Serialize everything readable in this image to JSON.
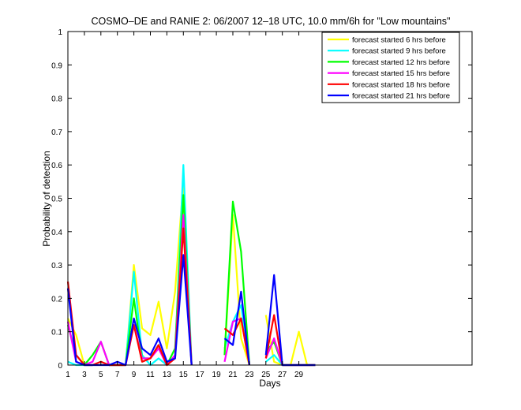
{
  "chart_data": {
    "type": "line",
    "title": "COSMO–DE and RANIE 2: 06/2007 12–18 UTC, 10.0 mm/6h for \"Low mountains\"",
    "xlabel": "Days",
    "ylabel": "Probability of detection",
    "xlim": [
      1,
      50
    ],
    "ylim": [
      0,
      1
    ],
    "xticks": [
      1,
      3,
      5,
      7,
      9,
      11,
      13,
      15,
      17,
      19,
      21,
      23,
      25,
      27,
      29
    ],
    "yticks": [
      0,
      0.1,
      0.2,
      0.3,
      0.4,
      0.5,
      0.6,
      0.7,
      0.8,
      0.9,
      1
    ],
    "legend_position": "top-right",
    "grid": false,
    "series": [
      {
        "name": "forecast started 6 hrs before",
        "color": "#ffff00",
        "segments": [
          [
            [
              1,
              0.14
            ],
            [
              2,
              0.09
            ],
            [
              3,
              0
            ],
            [
              4,
              0
            ],
            [
              5,
              0.01
            ],
            [
              6,
              0
            ],
            [
              7,
              0
            ],
            [
              8,
              0
            ],
            [
              9,
              0.3
            ],
            [
              10,
              0.11
            ],
            [
              11,
              0.09
            ],
            [
              12,
              0.19
            ],
            [
              13,
              0.05
            ],
            [
              14,
              0.22
            ],
            [
              15,
              0.55
            ],
            [
              16,
              0
            ]
          ],
          [
            [
              20,
              0.03
            ],
            [
              21,
              0.45
            ],
            [
              22,
              0.08
            ],
            [
              23,
              0
            ]
          ],
          [
            [
              25,
              0.15
            ],
            [
              26,
              0.01
            ],
            [
              27,
              0
            ],
            [
              28,
              0
            ],
            [
              29,
              0.1
            ],
            [
              30,
              0
            ],
            [
              31,
              0
            ]
          ]
        ]
      },
      {
        "name": "forecast started 9 hrs before",
        "color": "#00ffff",
        "segments": [
          [
            [
              1,
              0.01
            ],
            [
              2,
              0
            ],
            [
              3,
              0
            ],
            [
              4,
              0
            ],
            [
              5,
              0.01
            ],
            [
              6,
              0
            ],
            [
              7,
              0
            ],
            [
              8,
              0
            ],
            [
              9,
              0.28
            ],
            [
              10,
              0.03
            ],
            [
              11,
              0
            ],
            [
              12,
              0.02
            ],
            [
              13,
              0
            ],
            [
              14,
              0.03
            ],
            [
              15,
              0.6
            ],
            [
              16,
              0
            ]
          ],
          [
            [
              20,
              0.05
            ],
            [
              21,
              0.13
            ],
            [
              22,
              0.18
            ],
            [
              23,
              0
            ]
          ],
          [
            [
              25,
              0.01
            ],
            [
              26,
              0.03
            ],
            [
              27,
              0
            ],
            [
              28,
              0
            ],
            [
              29,
              0
            ],
            [
              30,
              0
            ],
            [
              31,
              0
            ]
          ]
        ]
      },
      {
        "name": "forecast started 12 hrs before",
        "color": "#00ff00",
        "segments": [
          [
            [
              1,
              0.12
            ],
            [
              2,
              0.03
            ],
            [
              3,
              0
            ],
            [
              4,
              0.03
            ],
            [
              5,
              0.07
            ],
            [
              6,
              0
            ],
            [
              7,
              0
            ],
            [
              8,
              0
            ],
            [
              9,
              0.2
            ],
            [
              10,
              0.02
            ],
            [
              11,
              0.02
            ],
            [
              12,
              0.06
            ],
            [
              13,
              0
            ],
            [
              14,
              0.05
            ],
            [
              15,
              0.51
            ],
            [
              16,
              0
            ]
          ],
          [
            [
              20,
              0.03
            ],
            [
              21,
              0.49
            ],
            [
              22,
              0.34
            ],
            [
              23,
              0
            ]
          ],
          [
            [
              25,
              0.04
            ],
            [
              26,
              0.07
            ],
            [
              27,
              0
            ],
            [
              28,
              0
            ],
            [
              29,
              0
            ],
            [
              30,
              0
            ],
            [
              31,
              0
            ]
          ]
        ]
      },
      {
        "name": "forecast started 15 hrs before",
        "color": "#ff00ff",
        "segments": [
          [
            [
              1,
              0.13
            ],
            [
              2,
              0.01
            ],
            [
              3,
              0
            ],
            [
              4,
              0.01
            ],
            [
              5,
              0.07
            ],
            [
              6,
              0
            ],
            [
              7,
              0
            ],
            [
              8,
              0
            ],
            [
              9,
              0.12
            ],
            [
              10,
              0.02
            ],
            [
              11,
              0.02
            ],
            [
              12,
              0.05
            ],
            [
              13,
              0
            ],
            [
              14,
              0.03
            ],
            [
              15,
              0.45
            ],
            [
              16,
              0
            ]
          ],
          [
            [
              20,
              0.01
            ],
            [
              21,
              0.13
            ],
            [
              22,
              0.14
            ],
            [
              23,
              0
            ]
          ],
          [
            [
              25,
              0.02
            ],
            [
              26,
              0.08
            ],
            [
              27,
              0
            ],
            [
              28,
              0
            ],
            [
              29,
              0
            ],
            [
              30,
              0
            ],
            [
              31,
              0
            ]
          ]
        ]
      },
      {
        "name": "forecast started 18 hrs before",
        "color": "#ff0000",
        "segments": [
          [
            [
              1,
              0.25
            ],
            [
              2,
              0.03
            ],
            [
              3,
              0
            ],
            [
              4,
              0
            ],
            [
              5,
              0.01
            ],
            [
              6,
              0
            ],
            [
              7,
              0
            ],
            [
              8,
              0
            ],
            [
              9,
              0.12
            ],
            [
              10,
              0.01
            ],
            [
              11,
              0.02
            ],
            [
              12,
              0.06
            ],
            [
              13,
              0
            ],
            [
              14,
              0.02
            ],
            [
              15,
              0.41
            ],
            [
              16,
              0
            ]
          ],
          [
            [
              20,
              0.11
            ],
            [
              21,
              0.09
            ],
            [
              22,
              0.14
            ],
            [
              23,
              0
            ]
          ],
          [
            [
              25,
              0.02
            ],
            [
              26,
              0.15
            ],
            [
              27,
              0
            ],
            [
              28,
              0
            ],
            [
              29,
              0
            ],
            [
              30,
              0
            ],
            [
              31,
              0
            ]
          ]
        ]
      },
      {
        "name": "forecast started 21 hrs before",
        "color": "#0000ff",
        "segments": [
          [
            [
              1,
              0.23
            ],
            [
              2,
              0.01
            ],
            [
              3,
              0
            ],
            [
              4,
              0
            ],
            [
              5,
              0
            ],
            [
              6,
              0
            ],
            [
              7,
              0.01
            ],
            [
              8,
              0
            ],
            [
              9,
              0.14
            ],
            [
              10,
              0.05
            ],
            [
              11,
              0.03
            ],
            [
              12,
              0.08
            ],
            [
              13,
              0.01
            ],
            [
              14,
              0.02
            ],
            [
              15,
              0.33
            ],
            [
              16,
              0
            ]
          ],
          [
            [
              20,
              0.08
            ],
            [
              21,
              0.06
            ],
            [
              22,
              0.22
            ],
            [
              23,
              0
            ]
          ],
          [
            [
              25,
              0.03
            ],
            [
              26,
              0.27
            ],
            [
              27,
              0
            ],
            [
              28,
              0
            ],
            [
              29,
              0
            ],
            [
              30,
              0
            ],
            [
              31,
              0
            ]
          ]
        ]
      }
    ]
  }
}
